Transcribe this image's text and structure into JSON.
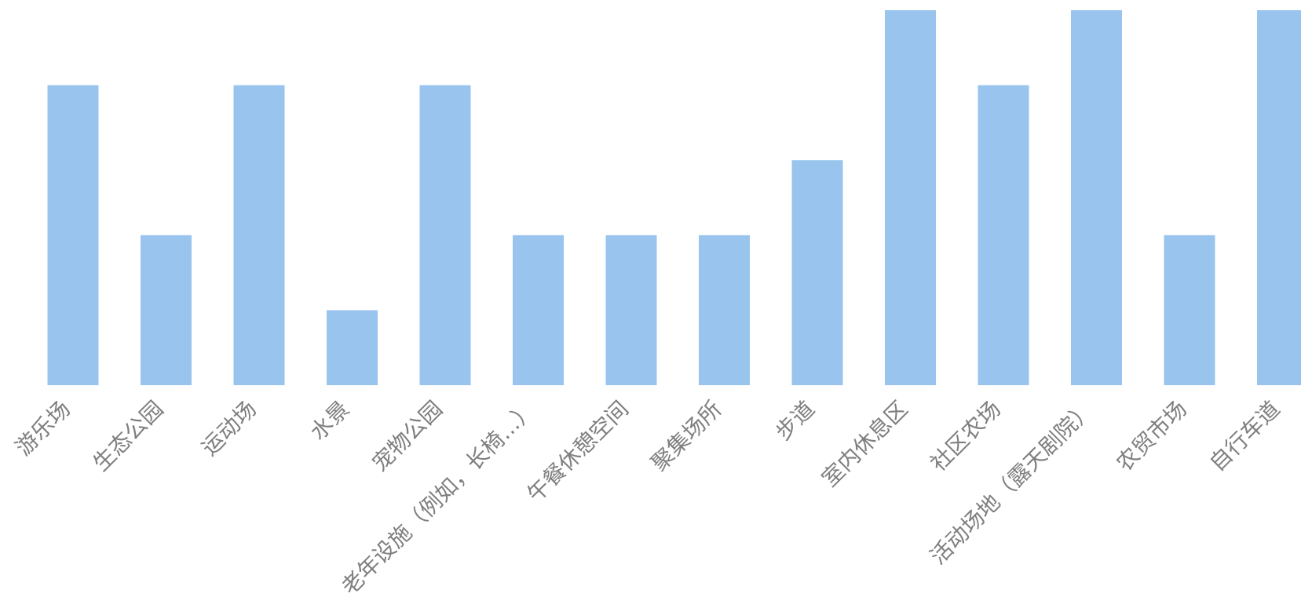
{
  "chart_data": {
    "type": "bar",
    "categories": [
      "游乐场",
      "生态公园",
      "运动场",
      "水景",
      "宠物公园",
      "老年设施（例如，长椅...）",
      "午餐休憩空间",
      "聚集场所",
      "步道",
      "室内休息区",
      "社区农场",
      "活动场地（露天剧院）",
      "农贸市场",
      "自行车道"
    ],
    "values": [
      4,
      2,
      4,
      1,
      4,
      2,
      2,
      2,
      3,
      5,
      4,
      5,
      2,
      5
    ],
    "ylim": [
      0,
      5
    ],
    "grid": false,
    "legend": "none",
    "colors": {
      "bar": "#99c4ed",
      "label": "#7f7f7f"
    }
  }
}
